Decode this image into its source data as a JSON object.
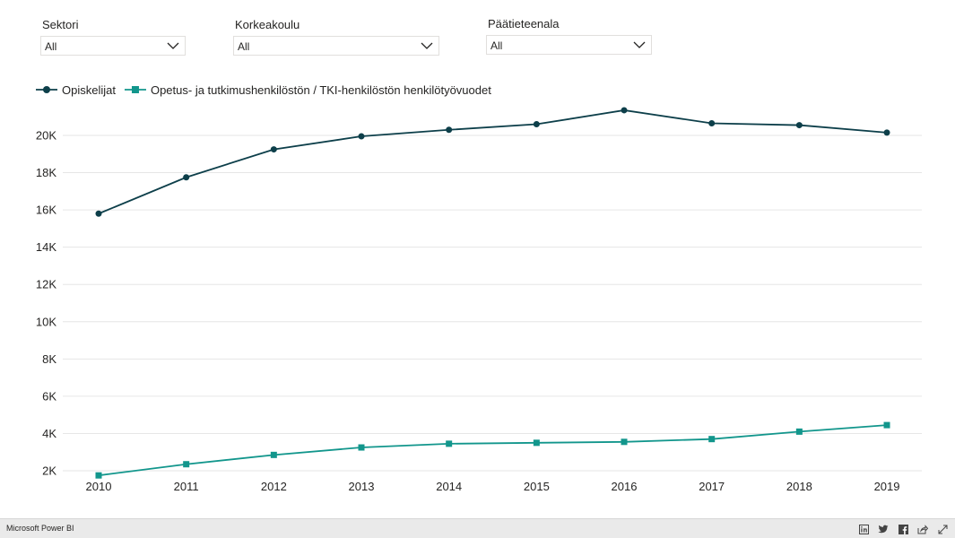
{
  "filters": [
    {
      "label": "Sektori",
      "value": "All"
    },
    {
      "label": "Korkeakoulu",
      "value": "All"
    },
    {
      "label": "Päätieteenala",
      "value": "All"
    }
  ],
  "footer": {
    "brand": "Microsoft Power BI",
    "icons": [
      "linkedin-icon",
      "twitter-icon",
      "facebook-icon",
      "share-icon",
      "fullscreen-icon"
    ]
  },
  "colors": {
    "series1": "#0d3f4a",
    "series2": "#12968c",
    "grid": "#e6e6e6"
  },
  "chart_data": {
    "type": "line",
    "x": [
      "2010",
      "2011",
      "2012",
      "2013",
      "2014",
      "2015",
      "2016",
      "2017",
      "2018",
      "2019"
    ],
    "series": [
      {
        "name": "Opiskelijat",
        "marker": "circle",
        "values": [
          15800,
          17750,
          19250,
          19950,
          20300,
          20600,
          21350,
          20650,
          20550,
          20150
        ]
      },
      {
        "name": "Opetus- ja tutkimushenkilöstön / TKI-henkilöstön henkilötyövuodet",
        "marker": "square",
        "values": [
          1750,
          2350,
          2850,
          3250,
          3450,
          3500,
          3550,
          3700,
          4100,
          4450
        ]
      }
    ],
    "yticks": [
      2000,
      4000,
      6000,
      8000,
      10000,
      12000,
      14000,
      16000,
      18000,
      20000
    ],
    "ytick_labels": [
      "2K",
      "4K",
      "6K",
      "8K",
      "10K",
      "12K",
      "14K",
      "16K",
      "18K",
      "20K"
    ],
    "ylim": [
      2000,
      20000
    ],
    "grid": true,
    "legend": "top-left"
  }
}
